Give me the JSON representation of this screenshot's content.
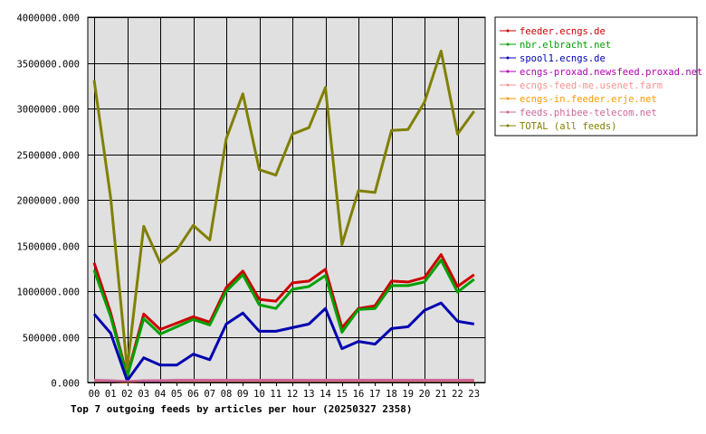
{
  "chart_data": {
    "type": "line",
    "title": "Top 7 outgoing feeds by articles per hour (20250327 2358)",
    "xlabel": "",
    "ylabel": "",
    "ylim": [
      0,
      4000000
    ],
    "grid": true,
    "legend_position": "top-right",
    "x": [
      "00",
      "01",
      "02",
      "03",
      "04",
      "05",
      "06",
      "07",
      "08",
      "09",
      "10",
      "11",
      "12",
      "13",
      "14",
      "15",
      "16",
      "17",
      "18",
      "19",
      "20",
      "21",
      "22",
      "23"
    ],
    "y_ticks": [
      "0.000",
      "500000.000",
      "1000000.000",
      "1500000.000",
      "2000000.000",
      "2500000.000",
      "3000000.000",
      "3500000.000",
      "4000000.000"
    ],
    "series": [
      {
        "name": "feeder.ecngs.de",
        "color": "#cc0000",
        "values": [
          1310000,
          760000,
          70000,
          750000,
          580000,
          650000,
          720000,
          660000,
          1040000,
          1220000,
          910000,
          890000,
          1090000,
          1110000,
          1240000,
          600000,
          810000,
          840000,
          1110000,
          1100000,
          1150000,
          1400000,
          1050000,
          1180000
        ]
      },
      {
        "name": "nbr.elbracht.net",
        "color": "#00a000",
        "values": [
          1230000,
          720000,
          60000,
          700000,
          530000,
          610000,
          690000,
          630000,
          1000000,
          1180000,
          850000,
          810000,
          1020000,
          1050000,
          1170000,
          550000,
          800000,
          810000,
          1060000,
          1060000,
          1100000,
          1340000,
          990000,
          1130000
        ]
      },
      {
        "name": "spool1.ecngs.de",
        "color": "#0000b0",
        "values": [
          750000,
          540000,
          20000,
          270000,
          190000,
          190000,
          310000,
          250000,
          640000,
          760000,
          560000,
          560000,
          600000,
          640000,
          810000,
          370000,
          450000,
          420000,
          590000,
          610000,
          790000,
          870000,
          670000,
          640000
        ]
      },
      {
        "name": "ecngs-proxad.newsfeed.proxad.net",
        "color": "#b000b0",
        "values": [
          10000,
          10000,
          5000,
          10000,
          10000,
          10000,
          10000,
          10000,
          10000,
          10000,
          10000,
          10000,
          10000,
          10000,
          10000,
          10000,
          10000,
          10000,
          10000,
          10000,
          10000,
          10000,
          10000,
          10000
        ]
      },
      {
        "name": "ecngs-feed-me.usenet.farm",
        "color": "#ff9090",
        "values": [
          20000,
          15000,
          5000,
          15000,
          15000,
          20000,
          20000,
          20000,
          20000,
          20000,
          20000,
          20000,
          20000,
          20000,
          20000,
          20000,
          20000,
          20000,
          20000,
          20000,
          20000,
          20000,
          20000,
          20000
        ]
      },
      {
        "name": "ecngs-in.feeder.erje.net",
        "color": "#ff9900",
        "values": [
          15000,
          10000,
          5000,
          10000,
          10000,
          15000,
          15000,
          15000,
          15000,
          15000,
          15000,
          15000,
          15000,
          15000,
          15000,
          15000,
          15000,
          15000,
          15000,
          15000,
          15000,
          15000,
          15000,
          15000
        ]
      },
      {
        "name": "feeds.phibee-telecom.net",
        "color": "#cc6699",
        "values": [
          25000,
          20000,
          10000,
          20000,
          20000,
          25000,
          25000,
          25000,
          25000,
          25000,
          25000,
          25000,
          25000,
          25000,
          25000,
          25000,
          25000,
          25000,
          25000,
          25000,
          25000,
          25000,
          25000,
          25000
        ]
      },
      {
        "name": "TOTAL (all feeds)",
        "color": "#808000",
        "values": [
          3310000,
          2020000,
          150000,
          1710000,
          1310000,
          1450000,
          1720000,
          1560000,
          2670000,
          3160000,
          2330000,
          2270000,
          2720000,
          2790000,
          3230000,
          1510000,
          2100000,
          2080000,
          2760000,
          2770000,
          3070000,
          3630000,
          2720000,
          2970000
        ]
      }
    ]
  }
}
